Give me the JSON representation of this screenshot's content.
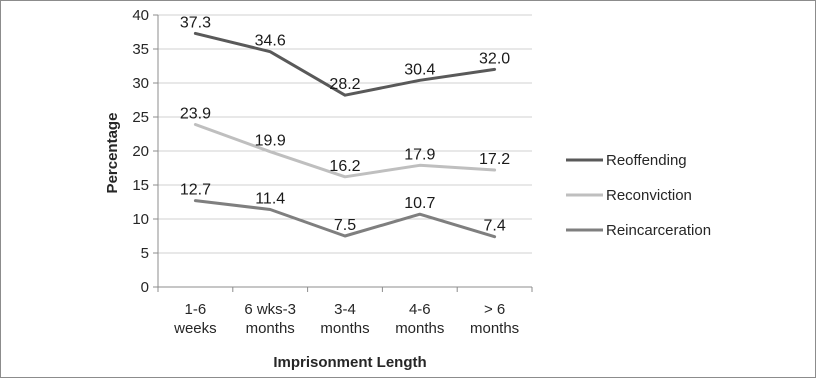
{
  "chart_data": {
    "type": "line",
    "title": "",
    "xlabel": "Imprisonment Length",
    "ylabel": "Percentage",
    "ylim": [
      0,
      40
    ],
    "yticks": [
      0,
      5,
      10,
      15,
      20,
      25,
      30,
      35,
      40
    ],
    "grid": true,
    "legend_position": "right",
    "categories": [
      [
        "1-6",
        "weeks"
      ],
      [
        "6 wks-3",
        "months"
      ],
      [
        "3-4",
        "months"
      ],
      [
        "4-6",
        "months"
      ],
      [
        "> 6",
        "months"
      ]
    ],
    "series": [
      {
        "name": "Reoffending",
        "color": "#595959",
        "values": [
          37.3,
          34.6,
          28.2,
          30.4,
          32.0
        ],
        "labels": [
          "37.3",
          "34.6",
          "28.2",
          "30.4",
          "32.0"
        ]
      },
      {
        "name": "Reconviction",
        "color": "#bfbfbf",
        "values": [
          23.9,
          19.9,
          16.2,
          17.9,
          17.2
        ],
        "labels": [
          "23.9",
          "19.9",
          "16.2",
          "17.9",
          "17.2"
        ]
      },
      {
        "name": "Reincarceration",
        "color": "#7f7f7f",
        "values": [
          12.7,
          11.4,
          7.5,
          10.7,
          7.4
        ],
        "labels": [
          "12.7",
          "11.4",
          "7.5",
          "10.7",
          "7.4"
        ]
      }
    ]
  }
}
